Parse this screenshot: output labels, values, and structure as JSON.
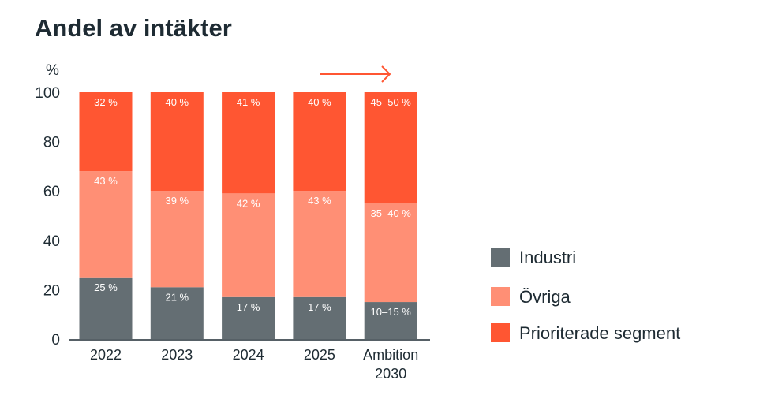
{
  "chart_data": {
    "type": "bar",
    "stacked": true,
    "title": "Andel av intäkter",
    "ylabel": "%",
    "ylim": [
      0,
      100
    ],
    "yticks": [
      "0",
      "20",
      "40",
      "60",
      "80",
      "100"
    ],
    "categories": [
      [
        "2022"
      ],
      [
        "2023"
      ],
      [
        "2024"
      ],
      [
        "2025"
      ],
      [
        "Ambition",
        "2030"
      ]
    ],
    "series": [
      {
        "name": "Industri",
        "color": "#646e73",
        "values": [
          25,
          21,
          17,
          17,
          15
        ],
        "labels": [
          "25 %",
          "21 %",
          "17 %",
          "17 %",
          "10–15 %"
        ]
      },
      {
        "name": "Övriga",
        "color": "#ff8f75",
        "values": [
          43,
          39,
          42,
          43,
          40
        ],
        "labels": [
          "43 %",
          "39 %",
          "42 %",
          "43 %",
          "35–40 %"
        ]
      },
      {
        "name": "Prioriterade segment",
        "color": "#ff5632",
        "values": [
          32,
          40,
          41,
          40,
          45
        ],
        "labels": [
          "32 %",
          "40 %",
          "41 %",
          "40 %",
          "45–50 %"
        ]
      }
    ],
    "legend_position": "right",
    "grid": false,
    "annotation": "arrow-right-icon"
  }
}
